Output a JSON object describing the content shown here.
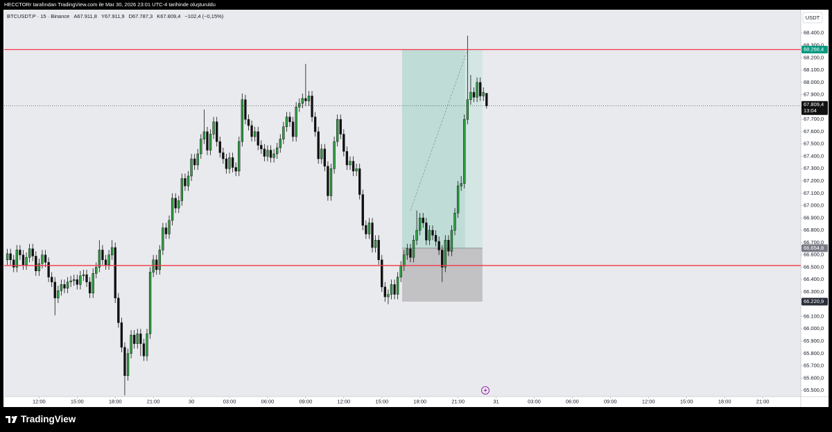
{
  "header": {
    "attribution": "HECCTORr tarafından TradingView.com ile Mar 30, 2026 23:01 UTC-4 tarihinde oluşturuldu"
  },
  "chart_data": {
    "type": "candlestick",
    "symbol": "BTCUSDT.P · 15 · Binance",
    "ohlc_labels": [
      "A67.911,8",
      "Y67.911,9",
      "D67.787,3",
      "K67.809,4"
    ],
    "change_label": "−102,4 (−0,15%)",
    "currency": "USDT",
    "up_color": "#2ea043",
    "down_color": "#111111",
    "open": [
      66560,
      66610,
      66560,
      66500,
      66640,
      66600,
      66520,
      66580,
      66650,
      66590,
      66470,
      66530,
      66600,
      66540,
      66420,
      66380,
      66250,
      66310,
      66360,
      66330,
      66380,
      66390,
      66400,
      66360,
      66430,
      66440,
      66380,
      66290,
      66450,
      66500,
      66640,
      66560,
      66520,
      66600,
      66660,
      66250,
      66050,
      65850,
      65620,
      65800,
      65950,
      65880,
      65960,
      65880,
      65780,
      65960,
      66460,
      66560,
      66480,
      66640,
      66820,
      66770,
      66880,
      67060,
      66980,
      67040,
      67220,
      67160,
      67240,
      67380,
      67330,
      67420,
      67540,
      67600,
      67450,
      67580,
      67680,
      67520,
      67430,
      67380,
      67300,
      67390,
      67310,
      67280,
      67520,
      67860,
      67700,
      67650,
      67560,
      67600,
      67490,
      67460,
      67400,
      67450,
      67390,
      67420,
      67470,
      67540,
      67640,
      67720,
      67680,
      67560,
      67800,
      67830,
      67870,
      67850,
      67890,
      67720,
      67600,
      67380,
      67460,
      67320,
      67080,
      67300,
      67520,
      67700,
      67580,
      67440,
      67330,
      67360,
      67280,
      67300,
      67090,
      66840,
      66770,
      66860,
      66660,
      66720,
      66560,
      66340,
      66260,
      66280,
      66360,
      66280,
      66420,
      66510,
      66600,
      66650,
      66580,
      66720,
      66800,
      66900,
      66860,
      66720,
      66800,
      66760,
      66710,
      66640,
      66500,
      66720,
      66630,
      66800,
      66940,
      67160,
      67180,
      67700,
      67860,
      67920,
      67880,
      68000,
      67890,
      67911.8
    ],
    "high": [
      66650,
      66650,
      66600,
      66680,
      66680,
      66640,
      66620,
      66690,
      66690,
      66630,
      66570,
      66640,
      66640,
      66580,
      66460,
      66420,
      66350,
      66400,
      66400,
      66420,
      66430,
      66440,
      66440,
      66470,
      66480,
      66480,
      66420,
      66490,
      66540,
      66720,
      66680,
      66600,
      66640,
      66720,
      66700,
      66290,
      66090,
      65890,
      65840,
      65990,
      65990,
      66000,
      66000,
      65920,
      66000,
      66500,
      66600,
      66600,
      66680,
      66860,
      66860,
      66920,
      67100,
      67100,
      67080,
      67260,
      67260,
      67280,
      67420,
      67420,
      67460,
      67580,
      67780,
      67640,
      67620,
      67720,
      67720,
      67560,
      67470,
      67420,
      67430,
      67430,
      67350,
      67560,
      67910,
      67900,
      67740,
      67690,
      67640,
      67640,
      67530,
      67500,
      67490,
      67490,
      67460,
      67510,
      67580,
      67680,
      67760,
      67760,
      67720,
      67840,
      67870,
      67910,
      68150,
      67930,
      67930,
      67760,
      67640,
      67500,
      67500,
      67360,
      67340,
      67560,
      67740,
      67740,
      67620,
      67480,
      67400,
      67400,
      67340,
      67340,
      67130,
      66880,
      66900,
      66900,
      66760,
      66760,
      66600,
      66380,
      66320,
      66400,
      66400,
      66460,
      66550,
      66640,
      66690,
      66690,
      66760,
      66960,
      66940,
      66940,
      66900,
      66840,
      66840,
      66800,
      66750,
      66680,
      66760,
      66760,
      66840,
      66980,
      67200,
      67240,
      67740,
      68380,
      68060,
      67960,
      68040,
      68040,
      67960,
      67911.9
    ],
    "low": [
      66520,
      66520,
      66460,
      66460,
      66560,
      66480,
      66480,
      66540,
      66550,
      66430,
      66430,
      66490,
      66500,
      66380,
      66340,
      66110,
      66210,
      66270,
      66290,
      66290,
      66340,
      66350,
      66320,
      66320,
      66390,
      66340,
      66250,
      66250,
      66410,
      66460,
      66520,
      66480,
      66480,
      66560,
      66210,
      66010,
      65810,
      65460,
      65580,
      65760,
      65840,
      65840,
      65780,
      65740,
      65740,
      65920,
      66420,
      66440,
      66440,
      66600,
      66730,
      66730,
      66840,
      66940,
      66940,
      67000,
      67120,
      67120,
      67200,
      67290,
      67290,
      67380,
      67500,
      67410,
      67410,
      67540,
      67480,
      67390,
      67340,
      67260,
      67260,
      67270,
      67240,
      67240,
      67480,
      67660,
      67610,
      67520,
      67520,
      67450,
      67420,
      67360,
      67360,
      67350,
      67350,
      67380,
      67430,
      67500,
      67600,
      67640,
      67520,
      67520,
      67760,
      67790,
      67810,
      67810,
      67680,
      67560,
      67340,
      67340,
      67280,
      67040,
      67040,
      67260,
      67480,
      67540,
      67400,
      67290,
      67290,
      67240,
      67240,
      67050,
      66800,
      66730,
      66730,
      66620,
      66620,
      66520,
      66300,
      66220,
      66200,
      66240,
      66240,
      66240,
      66380,
      66470,
      66560,
      66540,
      66540,
      66680,
      66760,
      66820,
      66680,
      66680,
      66720,
      66670,
      66600,
      66380,
      66460,
      66590,
      66590,
      66760,
      66900,
      67120,
      67140,
      67660,
      67820,
      67840,
      67840,
      67850,
      67850,
      67787.3
    ],
    "close": [
      66610,
      66560,
      66500,
      66640,
      66600,
      66520,
      66580,
      66650,
      66590,
      66470,
      66530,
      66600,
      66540,
      66420,
      66380,
      66250,
      66310,
      66360,
      66330,
      66380,
      66390,
      66400,
      66360,
      66430,
      66440,
      66380,
      66290,
      66450,
      66500,
      66640,
      66560,
      66520,
      66600,
      66660,
      66250,
      66050,
      65850,
      65620,
      65800,
      65950,
      65880,
      65960,
      65880,
      65780,
      65960,
      66460,
      66560,
      66480,
      66640,
      66820,
      66770,
      66880,
      67060,
      66980,
      67040,
      67220,
      67160,
      67240,
      67380,
      67330,
      67420,
      67540,
      67600,
      67450,
      67580,
      67680,
      67520,
      67430,
      67380,
      67300,
      67390,
      67310,
      67280,
      67520,
      67860,
      67700,
      67650,
      67560,
      67600,
      67490,
      67460,
      67400,
      67450,
      67390,
      67420,
      67470,
      67540,
      67640,
      67720,
      67680,
      67560,
      67800,
      67830,
      67870,
      67850,
      67890,
      67720,
      67600,
      67380,
      67460,
      67320,
      67080,
      67300,
      67520,
      67700,
      67580,
      67440,
      67330,
      67360,
      67280,
      67300,
      67090,
      66840,
      66770,
      66860,
      66660,
      66720,
      66560,
      66340,
      66260,
      66280,
      66360,
      66280,
      66420,
      66510,
      66600,
      66650,
      66580,
      66720,
      66800,
      66900,
      66860,
      66720,
      66800,
      66760,
      66710,
      66640,
      66500,
      66720,
      66630,
      66800,
      66940,
      67160,
      67180,
      67700,
      67860,
      67920,
      67880,
      68000,
      67890,
      67920,
      67809.4
    ],
    "xlim": [
      -1,
      250
    ],
    "xticks": [
      {
        "value": 10,
        "label": "12:00"
      },
      {
        "value": 22,
        "label": "15:00"
      },
      {
        "value": 34,
        "label": "18:00"
      },
      {
        "value": 46,
        "label": "21:00"
      },
      {
        "value": 58,
        "label": "30"
      },
      {
        "value": 70,
        "label": "03:00"
      },
      {
        "value": 82,
        "label": "06:00"
      },
      {
        "value": 94,
        "label": "09:00"
      },
      {
        "value": 106,
        "label": "12:00"
      },
      {
        "value": 118,
        "label": "15:00"
      },
      {
        "value": 130,
        "label": "18:00"
      },
      {
        "value": 142,
        "label": "21:00"
      },
      {
        "value": 154,
        "label": "31"
      },
      {
        "value": 166,
        "label": "03:00"
      },
      {
        "value": 178,
        "label": "06:00"
      },
      {
        "value": 190,
        "label": "09:00"
      },
      {
        "value": 202,
        "label": "12:00"
      },
      {
        "value": 214,
        "label": "15:00"
      },
      {
        "value": 226,
        "label": "18:00"
      },
      {
        "value": 238,
        "label": "21:00"
      }
    ],
    "ylim": [
      65450,
      68590
    ],
    "yticks": [
      {
        "value": 65500,
        "label": "65.500,0"
      },
      {
        "value": 65600,
        "label": "65.600,0"
      },
      {
        "value": 65700,
        "label": "65.700,0"
      },
      {
        "value": 65800,
        "label": "65.800,0"
      },
      {
        "value": 65900,
        "label": "65.900,0"
      },
      {
        "value": 66000,
        "label": "66.000,0"
      },
      {
        "value": 66100,
        "label": "66.100,0"
      },
      {
        "value": 66200,
        "label": "66.200,0"
      },
      {
        "value": 66300,
        "label": "66.300,0"
      },
      {
        "value": 66400,
        "label": "66.400,0"
      },
      {
        "value": 66500,
        "label": "66.500,0"
      },
      {
        "value": 66600,
        "label": "66.600,0"
      },
      {
        "value": 66700,
        "label": "66.700,0"
      },
      {
        "value": 66800,
        "label": "66.800,0"
      },
      {
        "value": 66900,
        "label": "66.900,0"
      },
      {
        "value": 67000,
        "label": "67.000,0"
      },
      {
        "value": 67100,
        "label": "67.100,0"
      },
      {
        "value": 67200,
        "label": "67.200,0"
      },
      {
        "value": 67300,
        "label": "67.300,0"
      },
      {
        "value": 67400,
        "label": "67.400,0"
      },
      {
        "value": 67500,
        "label": "67.500,0"
      },
      {
        "value": 67600,
        "label": "67.600,0"
      },
      {
        "value": 67700,
        "label": "67.700,0"
      },
      {
        "value": 67800,
        "label": "67.800,0"
      },
      {
        "value": 67900,
        "label": "67.900,0"
      },
      {
        "value": 68000,
        "label": "68.000,0"
      },
      {
        "value": 68100,
        "label": "68.100,0"
      },
      {
        "value": 68200,
        "label": "68.200,0"
      },
      {
        "value": 68300,
        "label": "68.300,0"
      },
      {
        "value": 68400,
        "label": "68.400,0"
      }
    ],
    "hlines": [
      {
        "value": 68266.4,
        "label": "68.266,4",
        "color": "#f23645"
      },
      {
        "value": 66514,
        "color": "#f23645"
      }
    ],
    "last_price": {
      "value": 67809.4,
      "label": "67.809,4",
      "countdown": "13:04"
    },
    "position": {
      "target": 68266.4,
      "entry": {
        "value": 66654.8,
        "label": "66.654,8"
      },
      "stop": {
        "value": 66220.9,
        "label": "66.220,9"
      }
    }
  },
  "footer": {
    "brand": "TradingView"
  }
}
